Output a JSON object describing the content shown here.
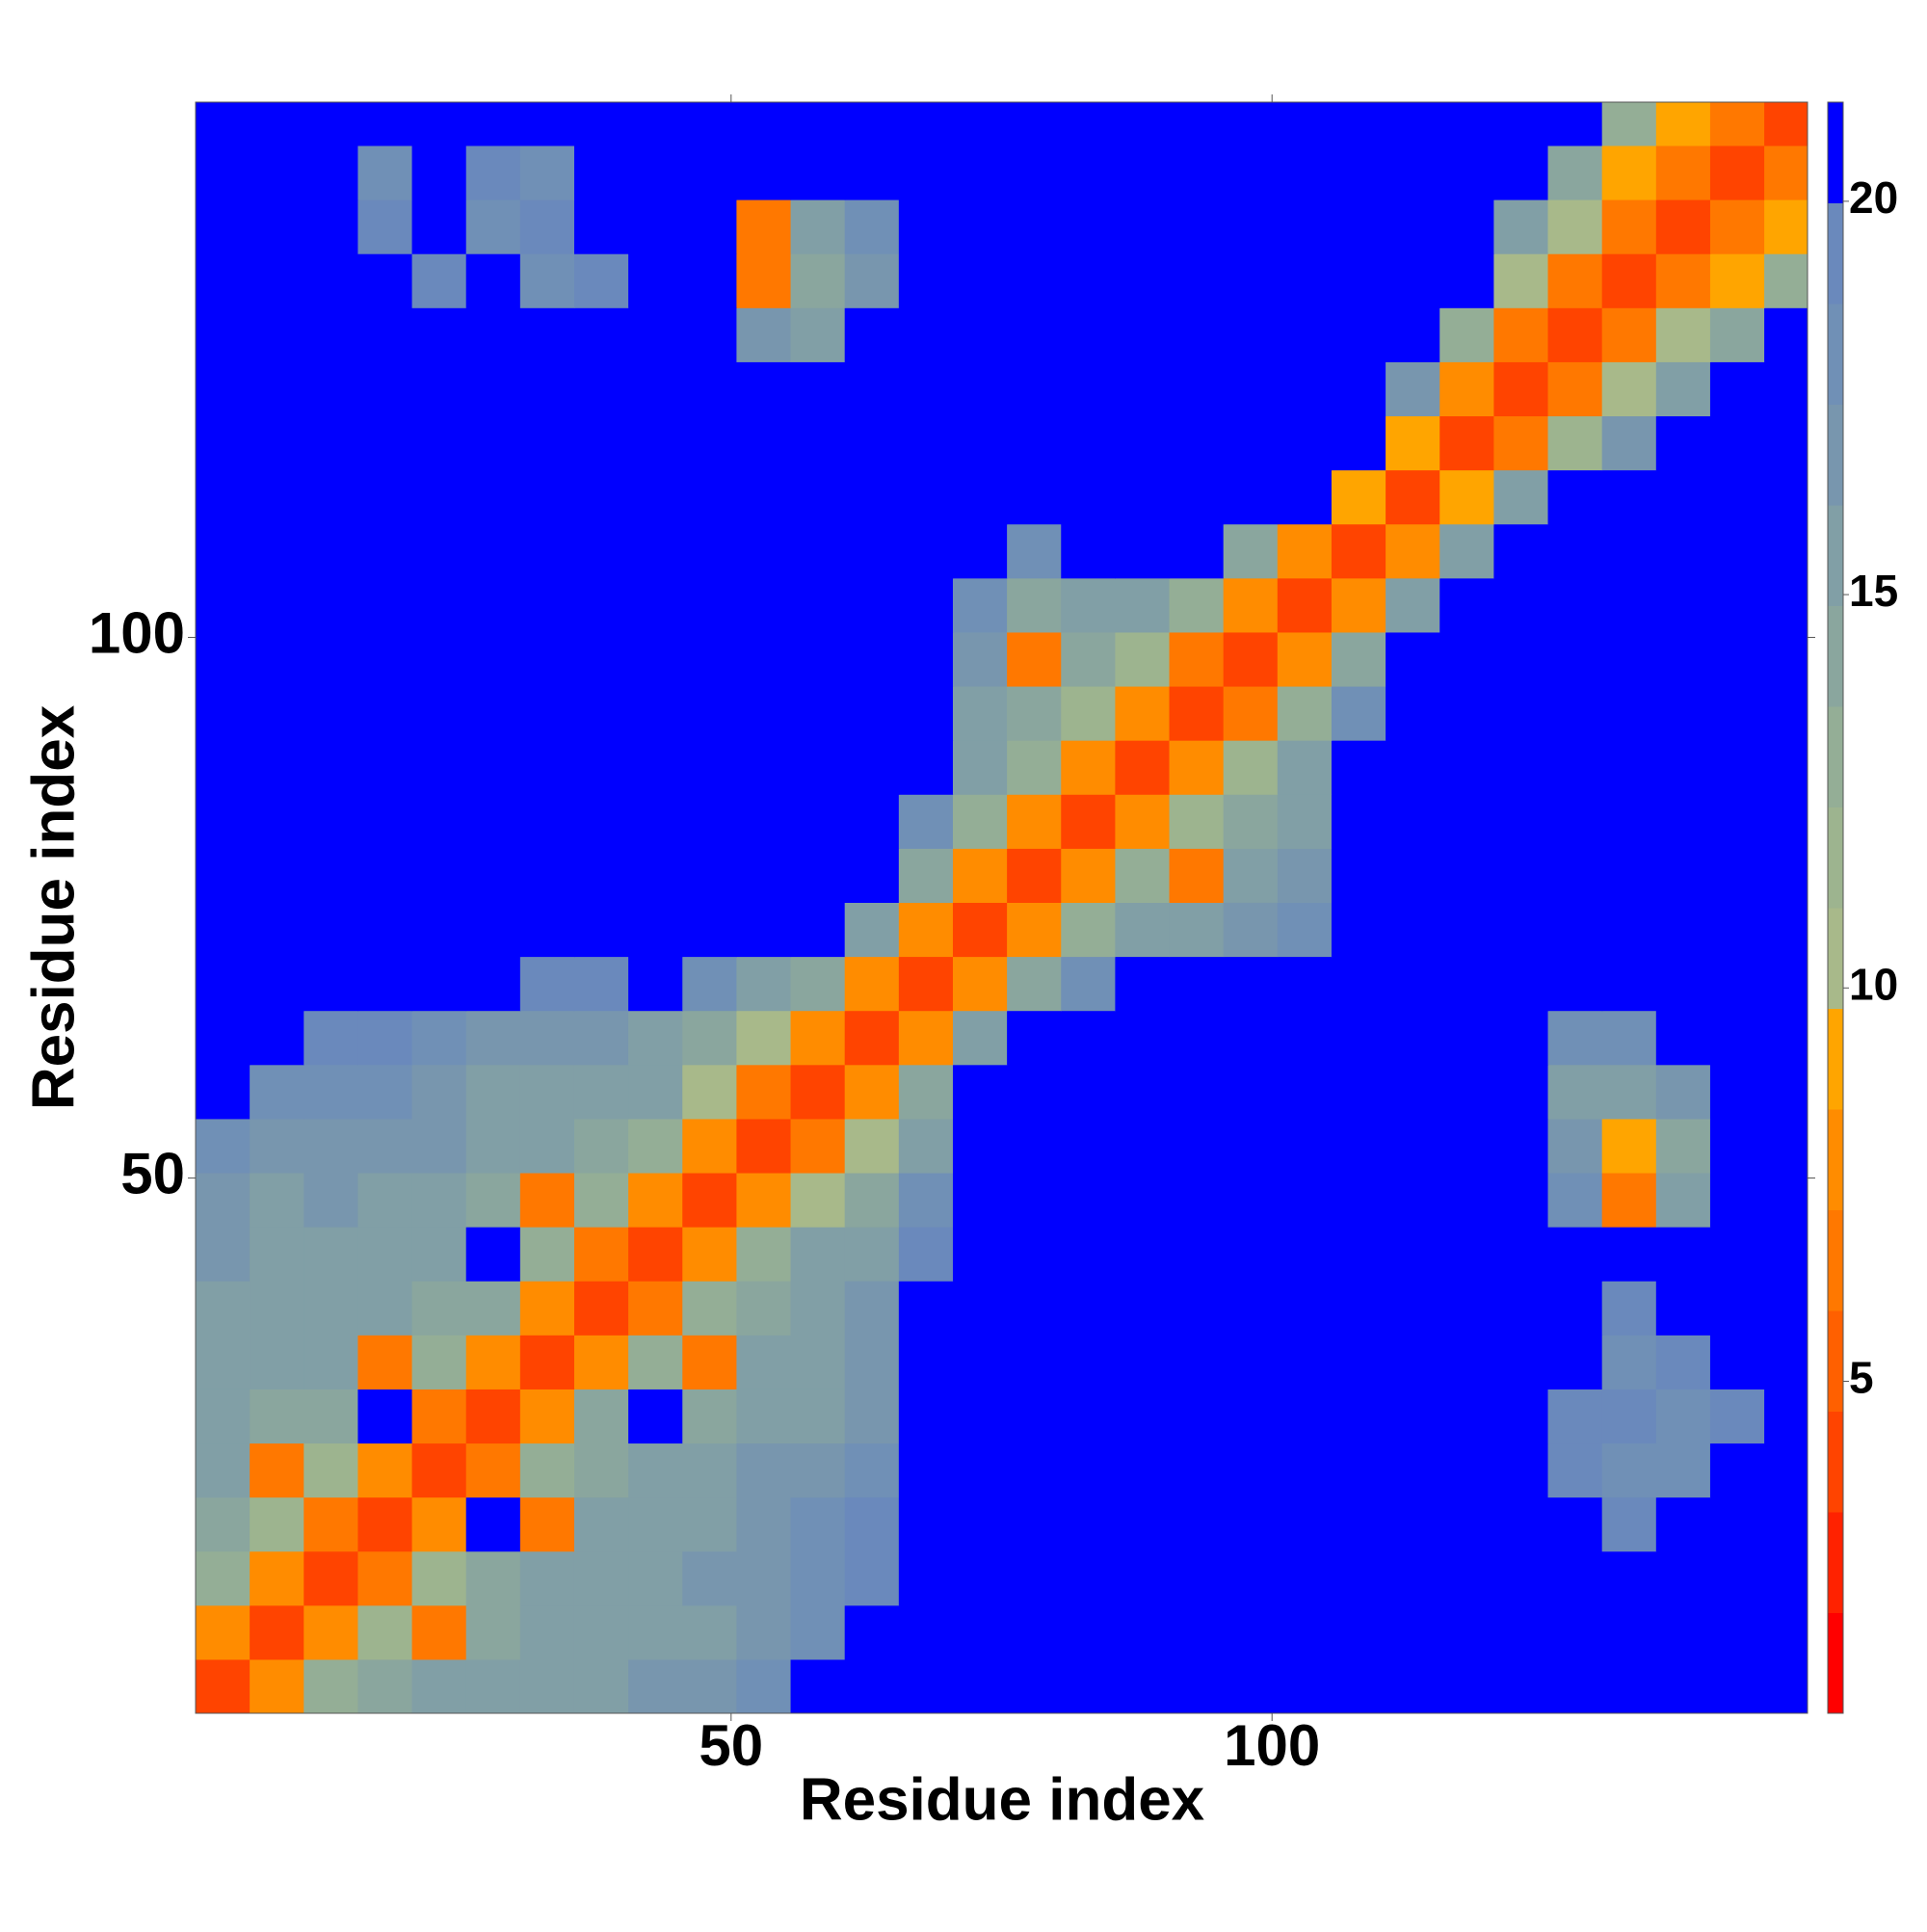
{
  "chart_data": {
    "type": "heatmap",
    "x_label": "Residue index",
    "y_label": "Residue index",
    "x": [
      3,
      8,
      13,
      18,
      23,
      28,
      33,
      38,
      43,
      48,
      53,
      58,
      63,
      68,
      73,
      78,
      83,
      88,
      93,
      98,
      103,
      108,
      113,
      118,
      123,
      128,
      133,
      138,
      143,
      148
    ],
    "y": [
      3,
      8,
      13,
      18,
      23,
      28,
      33,
      38,
      43,
      48,
      53,
      58,
      63,
      68,
      73,
      78,
      83,
      88,
      93,
      98,
      103,
      108,
      113,
      118,
      123,
      128,
      133,
      138,
      143,
      148
    ],
    "z": [
      [
        4,
        8,
        13,
        14,
        15,
        15,
        16,
        16,
        17,
        17,
        18,
        21,
        21,
        21,
        21,
        21,
        21,
        21,
        21,
        21,
        21,
        21,
        21,
        21,
        21,
        21,
        21,
        21,
        21,
        21
      ],
      [
        8,
        4,
        8,
        12,
        7,
        14,
        15,
        15,
        16,
        16,
        17,
        18,
        21,
        21,
        21,
        21,
        21,
        21,
        21,
        21,
        21,
        21,
        21,
        21,
        21,
        21,
        21,
        21,
        21,
        21
      ],
      [
        13,
        8,
        4,
        7,
        12,
        14,
        15,
        15,
        16,
        17,
        17,
        18,
        19,
        21,
        21,
        21,
        21,
        21,
        21,
        21,
        21,
        21,
        21,
        21,
        21,
        21,
        21,
        21,
        21,
        21
      ],
      [
        14,
        12,
        7,
        4,
        8,
        21,
        7,
        15,
        16,
        16,
        17,
        18,
        19,
        21,
        21,
        21,
        21,
        21,
        21,
        21,
        21,
        21,
        21,
        21,
        21,
        21,
        19,
        21,
        21,
        21
      ],
      [
        15,
        7,
        12,
        8,
        4,
        7,
        13,
        14,
        15,
        16,
        17,
        17,
        18,
        21,
        21,
        21,
        21,
        21,
        21,
        21,
        21,
        21,
        21,
        21,
        21,
        19,
        18,
        18,
        21,
        21
      ],
      [
        15,
        14,
        14,
        21,
        7,
        4,
        8,
        14,
        21,
        14,
        15,
        16,
        17,
        21,
        21,
        21,
        21,
        21,
        21,
        21,
        21,
        21,
        21,
        21,
        21,
        19,
        19,
        18,
        19,
        21
      ],
      [
        16,
        15,
        15,
        7,
        13,
        8,
        4,
        8,
        13,
        7,
        15,
        16,
        17,
        21,
        21,
        21,
        21,
        21,
        21,
        21,
        21,
        21,
        21,
        21,
        21,
        21,
        18,
        19,
        21,
        21
      ],
      [
        16,
        15,
        15,
        15,
        14,
        14,
        8,
        4,
        7,
        13,
        14,
        16,
        17,
        21,
        21,
        21,
        21,
        21,
        21,
        21,
        21,
        21,
        21,
        21,
        21,
        21,
        19,
        21,
        21,
        21
      ],
      [
        17,
        16,
        16,
        16,
        15,
        21,
        13,
        7,
        4,
        8,
        13,
        15,
        16,
        19,
        21,
        21,
        21,
        21,
        21,
        21,
        21,
        21,
        21,
        21,
        21,
        21,
        21,
        21,
        21,
        21
      ],
      [
        17,
        16,
        17,
        16,
        16,
        14,
        7,
        13,
        8,
        4,
        8,
        10,
        14,
        18,
        21,
        21,
        21,
        21,
        21,
        21,
        21,
        21,
        21,
        21,
        21,
        18,
        7,
        16,
        21,
        21
      ],
      [
        18,
        17,
        17,
        17,
        17,
        15,
        15,
        14,
        13,
        8,
        4,
        7,
        10,
        16,
        21,
        21,
        21,
        21,
        21,
        21,
        21,
        21,
        21,
        21,
        21,
        17,
        9,
        14,
        21,
        21
      ],
      [
        21,
        18,
        18,
        18,
        17,
        16,
        16,
        16,
        15,
        10,
        7,
        4,
        8,
        14,
        21,
        21,
        21,
        21,
        21,
        21,
        21,
        21,
        21,
        21,
        21,
        16,
        15,
        17,
        21,
        21
      ],
      [
        21,
        21,
        19,
        19,
        18,
        17,
        17,
        17,
        16,
        14,
        10,
        8,
        4,
        8,
        15,
        21,
        21,
        21,
        21,
        21,
        21,
        21,
        21,
        21,
        21,
        18,
        18,
        21,
        21,
        21
      ],
      [
        21,
        21,
        21,
        21,
        21,
        21,
        19,
        19,
        21,
        18,
        16,
        14,
        8,
        4,
        8,
        14,
        18,
        21,
        21,
        21,
        21,
        21,
        21,
        21,
        21,
        21,
        21,
        21,
        21,
        21
      ],
      [
        21,
        21,
        21,
        21,
        21,
        21,
        21,
        21,
        21,
        21,
        21,
        21,
        15,
        8,
        4,
        8,
        13,
        15,
        16,
        17,
        18,
        21,
        21,
        21,
        21,
        21,
        21,
        21,
        21,
        21
      ],
      [
        21,
        21,
        21,
        21,
        21,
        21,
        21,
        21,
        21,
        21,
        21,
        21,
        21,
        14,
        8,
        4,
        8,
        13,
        7,
        15,
        17,
        21,
        21,
        21,
        21,
        21,
        21,
        21,
        21,
        21
      ],
      [
        21,
        21,
        21,
        21,
        21,
        21,
        21,
        21,
        21,
        21,
        21,
        21,
        21,
        18,
        13,
        8,
        4,
        8,
        12,
        14,
        16,
        21,
        21,
        21,
        21,
        21,
        21,
        21,
        21,
        21
      ],
      [
        21,
        21,
        21,
        21,
        21,
        21,
        21,
        21,
        21,
        21,
        21,
        21,
        21,
        21,
        15,
        13,
        8,
        4,
        8,
        12,
        15,
        21,
        21,
        21,
        21,
        21,
        21,
        21,
        21,
        21
      ],
      [
        21,
        21,
        21,
        21,
        21,
        21,
        21,
        21,
        21,
        21,
        21,
        21,
        21,
        21,
        16,
        14,
        12,
        8,
        4,
        7,
        13,
        18,
        21,
        21,
        21,
        21,
        21,
        21,
        21,
        21
      ],
      [
        21,
        21,
        21,
        21,
        21,
        21,
        21,
        21,
        21,
        21,
        21,
        21,
        21,
        21,
        17,
        7,
        14,
        12,
        7,
        4,
        8,
        14,
        21,
        21,
        21,
        21,
        21,
        21,
        21,
        21
      ],
      [
        21,
        21,
        21,
        21,
        21,
        21,
        21,
        21,
        21,
        21,
        21,
        21,
        21,
        21,
        18,
        14,
        15,
        15,
        13,
        8,
        4,
        8,
        16,
        21,
        21,
        21,
        21,
        21,
        21,
        21
      ],
      [
        21,
        21,
        21,
        21,
        21,
        21,
        21,
        21,
        21,
        21,
        21,
        21,
        21,
        21,
        21,
        18,
        21,
        21,
        21,
        14,
        8,
        4,
        8,
        16,
        21,
        21,
        21,
        21,
        21,
        21
      ],
      [
        21,
        21,
        21,
        21,
        21,
        21,
        21,
        21,
        21,
        21,
        21,
        21,
        21,
        21,
        21,
        21,
        21,
        21,
        21,
        21,
        21,
        9,
        4,
        9,
        16,
        21,
        21,
        21,
        21,
        21
      ],
      [
        21,
        21,
        21,
        21,
        21,
        21,
        21,
        21,
        21,
        21,
        21,
        21,
        21,
        21,
        21,
        21,
        21,
        21,
        21,
        21,
        21,
        21,
        9,
        4,
        7,
        12,
        17,
        21,
        21,
        21
      ],
      [
        21,
        21,
        21,
        21,
        21,
        21,
        21,
        21,
        21,
        21,
        21,
        21,
        21,
        21,
        21,
        21,
        21,
        21,
        21,
        21,
        21,
        21,
        17,
        8,
        4,
        7,
        10,
        15,
        21,
        21
      ],
      [
        21,
        21,
        21,
        21,
        21,
        21,
        21,
        21,
        21,
        21,
        17,
        16,
        21,
        21,
        21,
        21,
        21,
        21,
        21,
        21,
        21,
        21,
        21,
        13,
        7,
        4,
        6,
        10,
        14,
        21
      ],
      [
        21,
        21,
        21,
        21,
        19,
        21,
        18,
        19,
        21,
        21,
        7,
        14,
        17,
        21,
        21,
        21,
        21,
        21,
        21,
        21,
        21,
        21,
        21,
        21,
        11,
        6,
        4,
        6,
        9,
        13
      ],
      [
        21,
        21,
        21,
        19,
        21,
        18,
        19,
        21,
        21,
        21,
        7,
        15,
        18,
        21,
        21,
        21,
        21,
        21,
        21,
        21,
        21,
        21,
        21,
        21,
        15,
        10,
        6,
        4,
        6,
        9
      ],
      [
        21,
        21,
        21,
        18,
        21,
        19,
        18,
        21,
        21,
        21,
        21,
        21,
        21,
        21,
        21,
        21,
        21,
        21,
        21,
        21,
        21,
        21,
        21,
        21,
        21,
        14,
        9,
        6,
        4,
        6
      ],
      [
        21,
        21,
        21,
        21,
        21,
        21,
        21,
        21,
        21,
        21,
        21,
        21,
        21,
        21,
        21,
        21,
        21,
        21,
        21,
        21,
        21,
        21,
        21,
        21,
        21,
        21,
        13,
        9,
        6,
        4
      ]
    ],
    "xlim": [
      0.5,
      149.5
    ],
    "ylim": [
      0.5,
      149.5
    ],
    "xticks": [
      50,
      100
    ],
    "yticks": [
      50,
      100
    ],
    "clim": [
      0.78,
      21.26
    ],
    "cticks": [
      5,
      10,
      15,
      20
    ],
    "colorscale": [
      "#ff0000",
      "#ff2200",
      "#ff4400",
      "#ff6000",
      "#ff7800",
      "#ff8c00",
      "#ffa500",
      "#a8b98a",
      "#9db48f",
      "#94ae96",
      "#8aa69e",
      "#819fa6",
      "#7896ae",
      "#7090b6",
      "#6a89bc",
      "#0000ff"
    ]
  }
}
